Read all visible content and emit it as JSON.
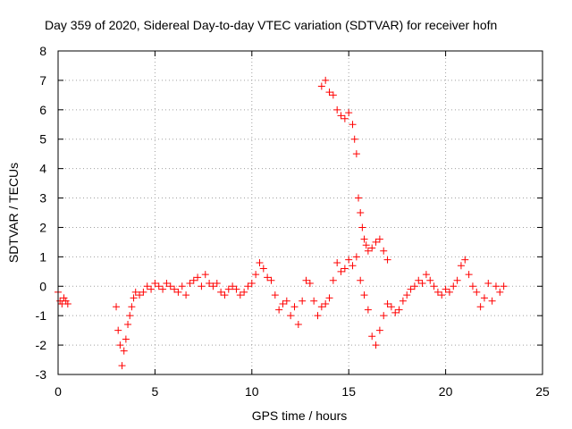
{
  "chart_data": {
    "type": "scatter",
    "title": "Day 359 of 2020, Sidereal Day-to-day VTEC variation (SDTVAR) for receiver hofn",
    "xlabel": "GPS time / hours",
    "ylabel": "SDTVAR / TECUs",
    "xlim": [
      0,
      25
    ],
    "ylim": [
      -3,
      8
    ],
    "x_ticks": [
      0,
      5,
      10,
      15,
      20,
      25
    ],
    "y_ticks": [
      -3,
      -2,
      -1,
      0,
      1,
      2,
      3,
      4,
      5,
      6,
      7,
      8
    ],
    "grid": true,
    "marker": "+",
    "color": "#ff0000",
    "series": [
      {
        "name": "SDTVAR",
        "x": [
          0,
          0.1,
          0.2,
          0.3,
          0.4,
          0.5,
          3.0,
          3.1,
          3.2,
          3.3,
          3.4,
          3.5,
          3.6,
          3.7,
          3.8,
          3.9,
          4.0,
          4.2,
          4.4,
          4.6,
          4.8,
          5.0,
          5.2,
          5.4,
          5.6,
          5.8,
          6.0,
          6.2,
          6.4,
          6.6,
          6.8,
          7.0,
          7.2,
          7.4,
          7.6,
          7.8,
          8.0,
          8.2,
          8.4,
          8.6,
          8.8,
          9.0,
          9.2,
          9.4,
          9.6,
          9.8,
          10.0,
          10.2,
          10.4,
          10.6,
          10.8,
          11.0,
          11.2,
          11.4,
          11.6,
          11.8,
          12.0,
          12.2,
          12.4,
          12.6,
          12.8,
          13.0,
          13.2,
          13.4,
          13.6,
          13.8,
          14.0,
          14.2,
          14.4,
          14.6,
          14.8,
          15.0,
          15.2,
          15.4,
          15.6,
          15.8,
          16.0,
          16.2,
          16.4,
          16.6,
          16.8,
          17.0,
          17.2,
          17.4,
          17.6,
          17.8,
          18.0,
          18.2,
          18.4,
          18.6,
          18.8,
          19.0,
          19.2,
          19.4,
          19.6,
          19.8,
          20.0,
          20.2,
          20.4,
          20.6,
          20.8,
          21.0,
          21.2,
          21.4,
          21.6,
          21.8,
          22.0,
          22.2,
          22.4,
          22.6,
          22.8,
          23.0,
          13.6,
          13.8,
          14.0,
          14.2,
          14.4,
          14.6,
          14.8,
          15.0,
          15.2,
          15.3,
          15.4,
          15.5,
          15.6,
          15.7,
          15.8,
          15.9,
          16.0,
          16.2,
          16.4,
          16.6,
          16.8,
          17.0
        ],
        "y": [
          -0.2,
          -0.5,
          -0.6,
          -0.4,
          -0.5,
          -0.6,
          -0.7,
          -1.5,
          -2.0,
          -2.7,
          -2.2,
          -1.8,
          -1.3,
          -1.0,
          -0.7,
          -0.4,
          -0.2,
          -0.3,
          -0.2,
          0.0,
          -0.1,
          0.1,
          0.0,
          -0.1,
          0.1,
          0.0,
          -0.1,
          -0.2,
          0.0,
          -0.3,
          0.1,
          0.2,
          0.3,
          0.0,
          0.4,
          0.1,
          0.0,
          0.1,
          -0.2,
          -0.3,
          -0.1,
          0.0,
          -0.1,
          -0.3,
          -0.2,
          0.0,
          0.1,
          0.4,
          0.8,
          0.6,
          0.3,
          0.2,
          -0.3,
          -0.8,
          -0.6,
          -0.5,
          -1.0,
          -0.7,
          -1.3,
          -0.5,
          0.2,
          0.1,
          -0.5,
          -1.0,
          -0.7,
          -0.6,
          -0.4,
          0.2,
          0.8,
          0.5,
          0.6,
          0.9,
          0.7,
          1.0,
          0.2,
          -0.3,
          -0.8,
          -1.7,
          -2.0,
          -1.5,
          -1.0,
          -0.6,
          -0.7,
          -0.9,
          -0.8,
          -0.5,
          -0.3,
          -0.1,
          0.0,
          0.2,
          0.1,
          0.4,
          0.2,
          0.0,
          -0.2,
          -0.3,
          -0.1,
          -0.2,
          0.0,
          0.2,
          0.7,
          0.9,
          0.4,
          0.0,
          -0.2,
          -0.7,
          -0.4,
          0.1,
          -0.5,
          0.0,
          -0.2,
          0.0,
          6.8,
          7.0,
          6.6,
          6.5,
          6.0,
          5.8,
          5.7,
          5.9,
          5.5,
          5.0,
          4.5,
          3.0,
          2.5,
          2.0,
          1.6,
          1.4,
          1.2,
          1.3,
          1.5,
          1.6,
          1.2,
          0.9
        ]
      }
    ]
  }
}
